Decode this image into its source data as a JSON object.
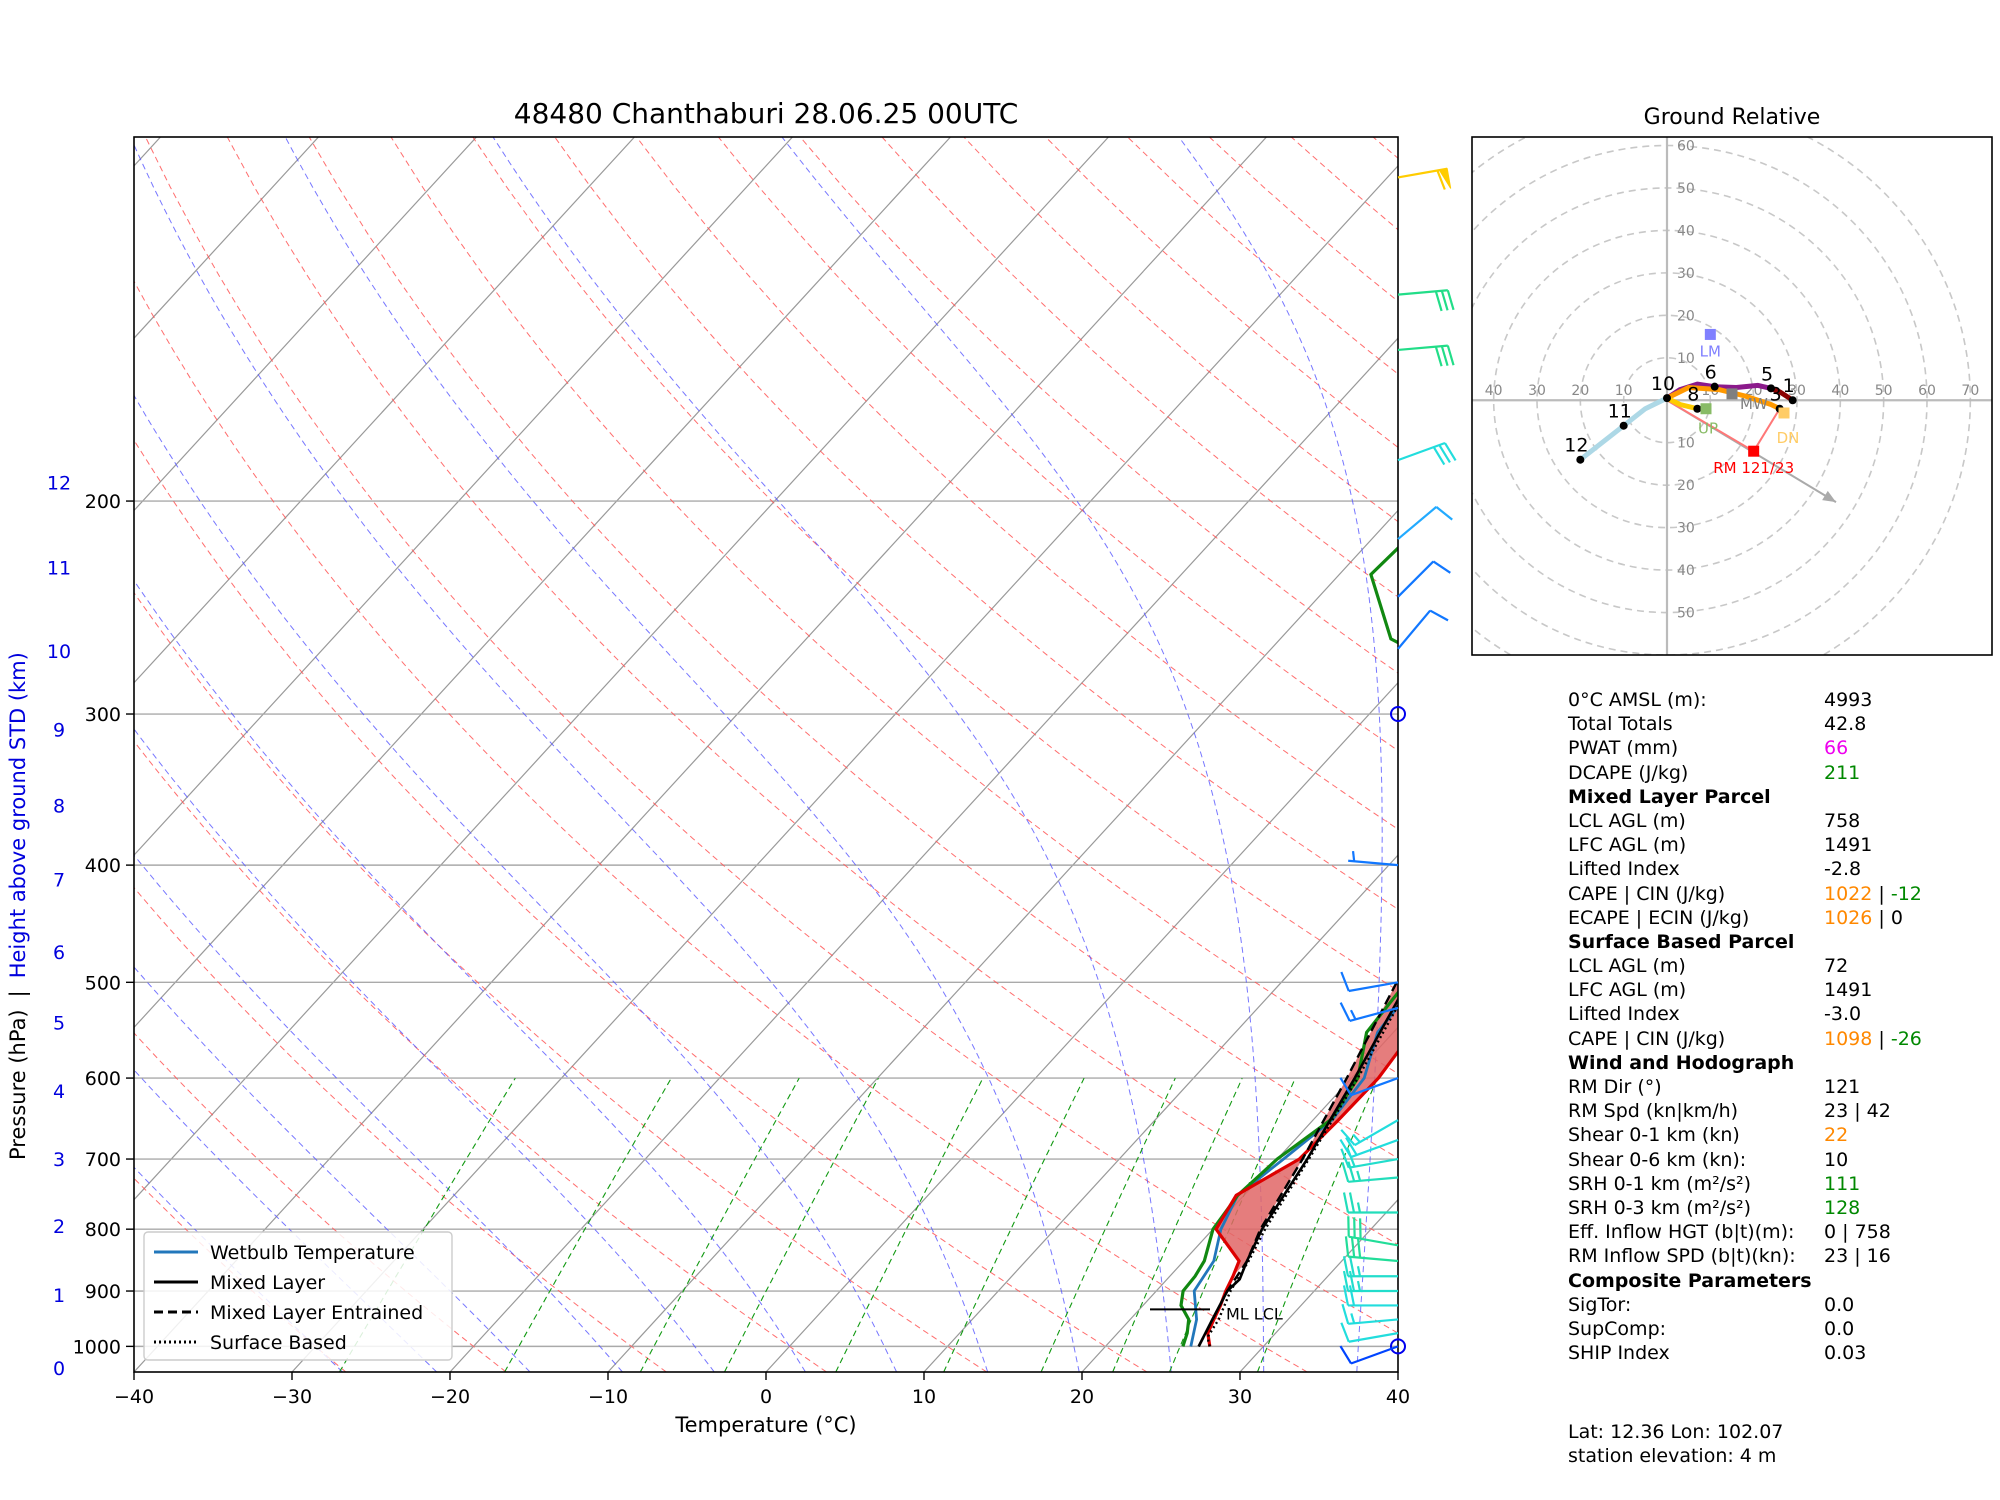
{
  "title": "48480 Chanthaburi 28.06.25 00UTC",
  "skewt": {
    "xlabel": "Temperature (°C)",
    "ylabel": "Pressure (hPa)",
    "ylabel_sep": "|",
    "ylabel_height": "Height above ground STD (km)",
    "xlim": [
      -40,
      40
    ],
    "ylim": [
      1050,
      100
    ],
    "x_ticks": [
      "−40",
      "−30",
      "−20",
      "−10",
      "0",
      "10",
      "20",
      "30",
      "40"
    ],
    "p_ticks": [
      {
        "p": 1000,
        "label": "1000"
      },
      {
        "p": 900,
        "label": "900"
      },
      {
        "p": 800,
        "label": "800"
      },
      {
        "p": 700,
        "label": "700"
      },
      {
        "p": 600,
        "label": "600"
      },
      {
        "p": 500,
        "label": "500"
      },
      {
        "p": 400,
        "label": "400"
      },
      {
        "p": 300,
        "label": "300"
      },
      {
        "p": 200,
        "label": "200"
      }
    ],
    "height_ticks": [
      {
        "label": "0",
        "p": 1042
      },
      {
        "label": "1",
        "p": 907
      },
      {
        "label": "2",
        "p": 795
      },
      {
        "label": "3",
        "p": 700
      },
      {
        "label": "4",
        "p": 615
      },
      {
        "label": "5",
        "p": 540
      },
      {
        "label": "6",
        "p": 472
      },
      {
        "label": "7",
        "p": 411
      },
      {
        "label": "8",
        "p": 357
      },
      {
        "label": "9",
        "p": 309
      },
      {
        "label": "10",
        "p": 266
      },
      {
        "label": "11",
        "p": 227
      },
      {
        "label": "12",
        "p": 193
      }
    ],
    "legend": [
      "Wetbulb Temperature",
      "Mixed Layer",
      "Mixed Layer Entrained",
      "Surface Based"
    ],
    "lcl_label": "ML LCL",
    "colors": {
      "temp": "#dd0000",
      "dewpoint": "#118811",
      "wetbulb": "#2277bb",
      "parcel": "#000000",
      "cape": "#e06666",
      "height_axis": "#0000dd",
      "dry_adiabat": "#ff5555",
      "moist_adiabat": "#5555ff",
      "mixing_ratio": "#119911",
      "isotherm": "#999999"
    },
    "temperature": [
      [
        1000,
        26.6
      ],
      [
        975,
        25.7
      ],
      [
        950,
        25.3
      ],
      [
        925,
        24.9
      ],
      [
        900,
        24.4
      ],
      [
        875,
        24.0
      ],
      [
        850,
        23.5
      ],
      [
        800,
        20.2
      ],
      [
        750,
        19.5
      ],
      [
        700,
        21.4
      ],
      [
        650,
        21.6
      ],
      [
        600,
        21.7
      ],
      [
        550,
        21.2
      ],
      [
        500,
        20.6
      ],
      [
        450,
        19.3
      ],
      [
        400,
        18.5
      ],
      [
        350,
        16.9
      ],
      [
        300,
        13.8
      ],
      [
        275,
        12.6
      ],
      [
        250,
        9.6
      ],
      [
        200,
        5.5
      ],
      [
        175,
        3.0
      ],
      [
        150,
        -0.1
      ],
      [
        125,
        -4.5
      ],
      [
        100,
        -6.1
      ]
    ],
    "dewpoint": [
      [
        1000,
        24.9
      ],
      [
        975,
        24.4
      ],
      [
        950,
        23.7
      ],
      [
        925,
        22.4
      ],
      [
        900,
        21.7
      ],
      [
        875,
        21.6
      ],
      [
        850,
        21.3
      ],
      [
        800,
        20.0
      ],
      [
        750,
        19.6
      ],
      [
        700,
        20.0
      ],
      [
        650,
        21.1
      ],
      [
        600,
        20.4
      ],
      [
        550,
        18.3
      ],
      [
        500,
        17.9
      ],
      [
        450,
        17.1
      ],
      [
        400,
        15.2
      ],
      [
        350,
        11.3
      ],
      [
        300,
        5.0
      ],
      [
        280,
        4.0
      ],
      [
        260,
        -3.0
      ],
      [
        230,
        -8.0
      ],
      [
        200,
        -7.5
      ],
      [
        180,
        -8.0
      ],
      [
        150,
        -14.0
      ],
      [
        130,
        -16.0
      ],
      [
        110,
        -18.5
      ],
      [
        100,
        -18.5
      ]
    ],
    "wetbulb": [
      [
        1000,
        25.4
      ],
      [
        950,
        24.2
      ],
      [
        900,
        22.4
      ],
      [
        850,
        21.9
      ],
      [
        800,
        20.5
      ],
      [
        750,
        19.6
      ],
      [
        700,
        20.4
      ],
      [
        650,
        21.2
      ],
      [
        600,
        20.8
      ],
      [
        550,
        19.0
      ],
      [
        500,
        18.6
      ],
      [
        450,
        17.8
      ],
      [
        400,
        16.8
      ],
      [
        350,
        14.5
      ],
      [
        300,
        9.6
      ],
      [
        250,
        5.5
      ],
      [
        200,
        1.2
      ],
      [
        175,
        -0.5
      ],
      [
        150,
        -4.0
      ],
      [
        125,
        -7.5
      ],
      [
        100,
        -9.5
      ]
    ],
    "ml_parcel": [
      [
        1000,
        25.9
      ],
      [
        950,
        25.2
      ],
      [
        900,
        24.5
      ],
      [
        880,
        24.6
      ],
      [
        850,
        24.0
      ],
      [
        800,
        23.1
      ],
      [
        700,
        21.9
      ],
      [
        600,
        20.2
      ],
      [
        500,
        18.0
      ],
      [
        400,
        14.7
      ],
      [
        350,
        12.6
      ],
      [
        300,
        9.0
      ],
      [
        250,
        4.6
      ],
      [
        200,
        -1.4
      ],
      [
        150,
        -9.8
      ],
      [
        100,
        -22.6
      ]
    ],
    "ml_entrained": [
      [
        1000,
        25.9
      ],
      [
        900,
        24.5
      ],
      [
        850,
        24.0
      ],
      [
        800,
        23.0
      ],
      [
        700,
        21.6
      ],
      [
        600,
        19.7
      ],
      [
        500,
        17.3
      ],
      [
        400,
        13.8
      ],
      [
        300,
        8.0
      ],
      [
        200,
        -2.6
      ],
      [
        150,
        -11.0
      ],
      [
        100,
        -23.8
      ]
    ],
    "sb_parcel": [
      [
        1000,
        26.6
      ],
      [
        990,
        26.2
      ],
      [
        980,
        25.9
      ],
      [
        950,
        25.6
      ],
      [
        900,
        24.7
      ],
      [
        850,
        24.1
      ],
      [
        800,
        23.3
      ],
      [
        700,
        22.0
      ],
      [
        600,
        20.4
      ],
      [
        500,
        18.2
      ],
      [
        400,
        14.9
      ],
      [
        300,
        9.3
      ],
      [
        200,
        -1.0
      ],
      [
        150,
        -9.3
      ],
      [
        100,
        -22.0
      ]
    ],
    "lcl_p": 925,
    "winds": [
      {
        "p": 1000,
        "dir": 250,
        "spd": 10,
        "color": "#0044ff"
      },
      {
        "p": 975,
        "dir": 260,
        "spd": 10,
        "color": "#22dddd"
      },
      {
        "p": 950,
        "dir": 265,
        "spd": 15,
        "color": "#22dddd"
      },
      {
        "p": 925,
        "dir": 270,
        "spd": 20,
        "color": "#22dddd"
      },
      {
        "p": 900,
        "dir": 270,
        "spd": 25,
        "color": "#22ddcc"
      },
      {
        "p": 875,
        "dir": 270,
        "spd": 25,
        "color": "#22ddcc"
      },
      {
        "p": 850,
        "dir": 275,
        "spd": 30,
        "color": "#22dd99"
      },
      {
        "p": 825,
        "dir": 280,
        "spd": 30,
        "color": "#22dd99"
      },
      {
        "p": 775,
        "dir": 270,
        "spd": 25,
        "color": "#22ddbb"
      },
      {
        "p": 725,
        "dir": 265,
        "spd": 25,
        "color": "#22ddbb"
      },
      {
        "p": 700,
        "dir": 260,
        "spd": 20,
        "color": "#22ddcc"
      },
      {
        "p": 675,
        "dir": 250,
        "spd": 20,
        "color": "#22dddd"
      },
      {
        "p": 650,
        "dir": 240,
        "spd": 15,
        "color": "#22dddd"
      },
      {
        "p": 600,
        "dir": 250,
        "spd": 10,
        "color": "#1177ff"
      },
      {
        "p": 525,
        "dir": 255,
        "spd": 15,
        "color": "#1177ff"
      },
      {
        "p": 500,
        "dir": 260,
        "spd": 10,
        "color": "#1177ff"
      },
      {
        "p": 400,
        "dir": 275,
        "spd": 5,
        "color": "#1177ff"
      },
      {
        "p": 265,
        "dir": 40,
        "spd": 10,
        "color": "#1177ff"
      },
      {
        "p": 240,
        "dir": 45,
        "spd": 10,
        "color": "#1177ff"
      },
      {
        "p": 215,
        "dir": 50,
        "spd": 10,
        "color": "#22aaff"
      },
      {
        "p": 185,
        "dir": 70,
        "spd": 30,
        "color": "#22dddd"
      },
      {
        "p": 150,
        "dir": 85,
        "spd": 30,
        "color": "#22dd88"
      },
      {
        "p": 135,
        "dir": 85,
        "spd": 30,
        "color": "#22dd88"
      },
      {
        "p": 108,
        "dir": 80,
        "spd": 60,
        "color": "#ffcc00"
      }
    ]
  },
  "hodograph": {
    "title": "Ground Relative",
    "rings": [
      10,
      20,
      30,
      40,
      50,
      60,
      70
    ],
    "ring_labels": [
      "10",
      "20",
      "30",
      "40",
      "50",
      "60",
      "70"
    ],
    "x_labels": [
      {
        "v": -40,
        "t": "40"
      },
      {
        "v": -30,
        "t": "30"
      },
      {
        "v": -20,
        "t": "20"
      },
      {
        "v": -10,
        "t": "10"
      },
      {
        "v": 10,
        "t": "10"
      },
      {
        "v": 20,
        "t": "20"
      },
      {
        "v": 30,
        "t": "30"
      },
      {
        "v": 40,
        "t": "40"
      },
      {
        "v": 50,
        "t": "50"
      },
      {
        "v": 60,
        "t": "60"
      },
      {
        "v": 70,
        "t": "70"
      }
    ],
    "y_labels": [
      {
        "v": 60,
        "t": "60"
      },
      {
        "v": 50,
        "t": "50"
      },
      {
        "v": 40,
        "t": "40"
      },
      {
        "v": 30,
        "t": "30"
      },
      {
        "v": 20,
        "t": "20"
      },
      {
        "v": 10,
        "t": "10"
      },
      {
        "v": -10,
        "t": "10"
      },
      {
        "v": -20,
        "t": "20"
      },
      {
        "v": -30,
        "t": "30"
      },
      {
        "v": -40,
        "t": "40"
      },
      {
        "v": -50,
        "t": "50"
      }
    ],
    "xlim": [
      -45,
      75
    ],
    "ylim": [
      -60,
      62
    ],
    "segments": [
      {
        "color": "#8b0000",
        "points": [
          [
            29,
            0
          ],
          [
            26,
            2
          ],
          [
            24,
            2.8
          ]
        ]
      },
      {
        "color": "#8b1a8b",
        "points": [
          [
            24,
            2.8
          ],
          [
            21,
            3.5
          ],
          [
            16,
            3
          ],
          [
            11,
            3.2
          ],
          [
            7,
            3.8
          ],
          [
            3,
            2.5
          ],
          [
            0,
            0.5
          ]
        ]
      },
      {
        "color": "#ff9900",
        "points": [
          [
            0,
            0.5
          ],
          [
            5,
            3
          ],
          [
            12,
            2.5
          ],
          [
            18,
            1
          ],
          [
            24,
            -1
          ],
          [
            26,
            -2
          ]
        ]
      },
      {
        "color": "#ffcc00",
        "points": [
          [
            0,
            0.5
          ],
          [
            3,
            -1
          ],
          [
            7,
            -2
          ]
        ]
      },
      {
        "color": "#add8e6",
        "points": [
          [
            0,
            0.5
          ],
          [
            -5,
            -2
          ],
          [
            -10,
            -6
          ],
          [
            -15,
            -10
          ],
          [
            -20,
            -14
          ]
        ]
      }
    ],
    "km_labels": [
      {
        "t": "1",
        "x": 29,
        "y": 0
      },
      {
        "t": "3",
        "x": 26,
        "y": -2
      },
      {
        "t": "5",
        "x": 24,
        "y": 2.8
      },
      {
        "t": "6",
        "x": 11,
        "y": 3.2
      },
      {
        "t": "8",
        "x": 7,
        "y": -2
      },
      {
        "t": "10",
        "x": 0,
        "y": 0.5
      },
      {
        "t": "11",
        "x": -10,
        "y": -6
      },
      {
        "t": "12",
        "x": -20,
        "y": -14
      }
    ],
    "lm": {
      "label": "LM",
      "x": 10,
      "y": 15.5,
      "color": "#8080ff"
    },
    "mw": {
      "label": "MW",
      "x": 15,
      "y": 1.5,
      "color": "#808080"
    },
    "up": {
      "label": "UP",
      "x": 9,
      "y": -2,
      "color": "#88bb66"
    },
    "dn": {
      "label": "DN",
      "x": 27,
      "y": -3,
      "color": "#ffcc66"
    },
    "rm": {
      "label": "RM 121/23",
      "x": 20,
      "y": -12,
      "color": "#ff0000"
    },
    "storm_arrow": {
      "x1": 0,
      "y1": 0,
      "x2": 39,
      "y2": -24
    }
  },
  "params": [
    {
      "l": "0°C AMSL (m):",
      "v": [
        {
          "t": "4993"
        }
      ]
    },
    {
      "l": "Total Totals",
      "v": [
        {
          "t": "42.8"
        }
      ]
    },
    {
      "l": "PWAT (mm)",
      "v": [
        {
          "t": "66",
          "c": "#ee00ee"
        }
      ]
    },
    {
      "l": "DCAPE (J/kg)",
      "v": [
        {
          "t": "211",
          "c": "#008800"
        }
      ]
    },
    {
      "l": "Mixed Layer Parcel",
      "head": true,
      "v": []
    },
    {
      "l": "LCL AGL (m)",
      "v": [
        {
          "t": "758"
        }
      ]
    },
    {
      "l": "LFC AGL (m)",
      "v": [
        {
          "t": "1491"
        }
      ]
    },
    {
      "l": "Lifted Index",
      "v": [
        {
          "t": "-2.8"
        }
      ]
    },
    {
      "l": "CAPE | CIN (J/kg)",
      "v": [
        {
          "t": "1022",
          "c": "#ff8800"
        },
        {
          "t": " | "
        },
        {
          "t": "-12",
          "c": "#008800"
        }
      ]
    },
    {
      "l": "ECAPE | ECIN (J/kg)",
      "v": [
        {
          "t": "1026",
          "c": "#ff8800"
        },
        {
          "t": " | "
        },
        {
          "t": "0"
        }
      ]
    },
    {
      "l": "Surface Based Parcel",
      "head": true,
      "v": []
    },
    {
      "l": "LCL AGL (m)",
      "v": [
        {
          "t": "72"
        }
      ]
    },
    {
      "l": "LFC AGL (m)",
      "v": [
        {
          "t": "1491"
        }
      ]
    },
    {
      "l": "Lifted Index",
      "v": [
        {
          "t": "-3.0"
        }
      ]
    },
    {
      "l": "CAPE | CIN (J/kg)",
      "v": [
        {
          "t": "1098",
          "c": "#ff8800"
        },
        {
          "t": " | "
        },
        {
          "t": "-26",
          "c": "#008800"
        }
      ]
    },
    {
      "l": "Wind and Hodograph",
      "head": true,
      "v": []
    },
    {
      "l": "RM Dir (°)",
      "v": [
        {
          "t": "121"
        }
      ]
    },
    {
      "l": "RM Spd (kn|km/h)",
      "v": [
        {
          "t": "23 | 42"
        }
      ]
    },
    {
      "l": "Shear 0-1 km (kn)",
      "v": [
        {
          "t": "22",
          "c": "#ff8800"
        }
      ]
    },
    {
      "l": "Shear 0-6 km (kn):",
      "v": [
        {
          "t": "10"
        }
      ]
    },
    {
      "l": "SRH 0-1 km (m²/s²)",
      "v": [
        {
          "t": "111",
          "c": "#008800"
        }
      ]
    },
    {
      "l": "SRH 0-3 km (m²/s²)",
      "v": [
        {
          "t": "128",
          "c": "#008800"
        }
      ]
    },
    {
      "l": "Eff. Inflow HGT (b|t)(m):",
      "v": [
        {
          "t": "0 | 758"
        }
      ]
    },
    {
      "l": "RM Inflow SPD (b|t)(kn):",
      "v": [
        {
          "t": "23 | 16"
        }
      ]
    },
    {
      "l": "Composite Parameters",
      "head": true,
      "v": []
    },
    {
      "l": "SigTor:",
      "v": [
        {
          "t": "0.0"
        }
      ]
    },
    {
      "l": "SupComp:",
      "v": [
        {
          "t": "0.0"
        }
      ]
    },
    {
      "l": "SHIP Index",
      "v": [
        {
          "t": "0.03"
        }
      ]
    }
  ],
  "footer": {
    "line1": "Lat: 12.36  Lon: 102.07",
    "line2": "station elevation: 4 m"
  }
}
